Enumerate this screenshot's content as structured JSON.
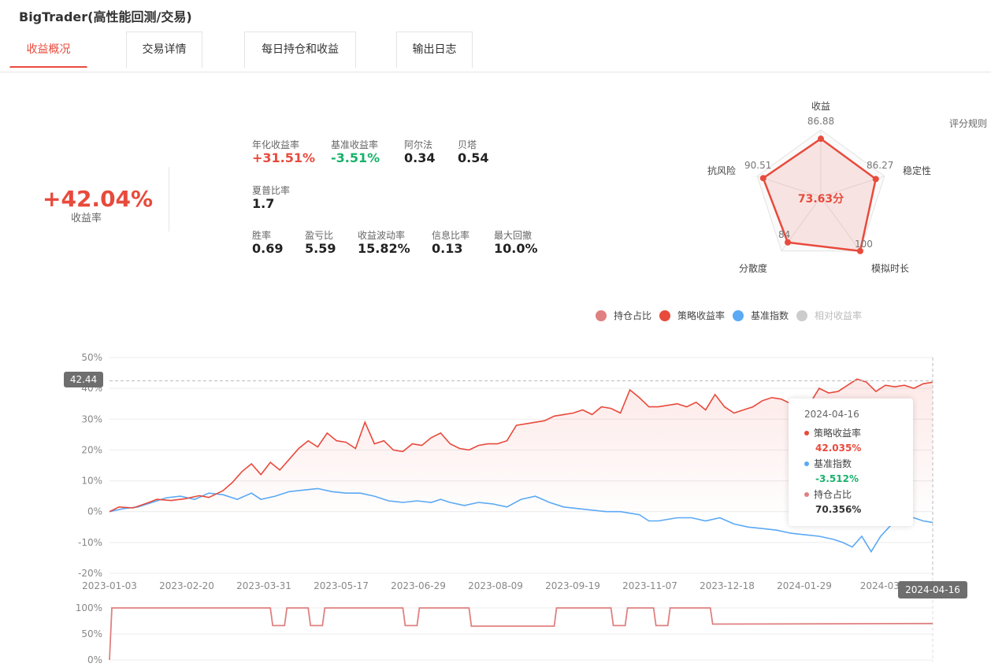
{
  "app": {
    "title": "BigTrader(高性能回测/交易)"
  },
  "tabs": [
    {
      "label": "收益概况",
      "active": true
    },
    {
      "label": "交易详情",
      "active": false
    },
    {
      "label": "每日持仓和收益",
      "active": false
    },
    {
      "label": "输出日志",
      "active": false
    }
  ],
  "summary": {
    "total_return": "+42.04%",
    "total_return_label": "收益率"
  },
  "metrics": [
    {
      "label": "年化收益率",
      "value": "+31.51%",
      "tone": "red"
    },
    {
      "label": "基准收益率",
      "value": "-3.51%",
      "tone": "green"
    },
    {
      "label": "阿尔法",
      "value": "0.34",
      "tone": ""
    },
    {
      "label": "贝塔",
      "value": "0.54",
      "tone": ""
    },
    {
      "label": "夏普比率",
      "value": "1.7",
      "tone": ""
    },
    {
      "label": "胜率",
      "value": "0.69",
      "tone": ""
    },
    {
      "label": "盈亏比",
      "value": "5.59",
      "tone": ""
    },
    {
      "label": "收益波动率",
      "value": "15.82%",
      "tone": ""
    },
    {
      "label": "信息比率",
      "value": "0.13",
      "tone": ""
    },
    {
      "label": "最大回撤",
      "value": "10.0%",
      "tone": ""
    }
  ],
  "radar": {
    "score": "73.63分",
    "rules_label": "评分规则",
    "axes": [
      {
        "name": "收益",
        "value": 86.88,
        "value_label": "86.88"
      },
      {
        "name": "稳定性",
        "value": 86.27,
        "value_label": "86.27"
      },
      {
        "name": "模拟时长",
        "value": 100,
        "value_label": "100"
      },
      {
        "name": "分散度",
        "value": 84,
        "value_label": "84"
      },
      {
        "name": "抗风险",
        "value": 90.51,
        "value_label": "90.51"
      }
    ]
  },
  "colors": {
    "strategy": "#e84a3c",
    "benchmark": "#5aa9f5",
    "position": "#e08080",
    "relative": "#cccccc",
    "green": "#17b26a"
  },
  "legend": [
    {
      "name": "持仓占比",
      "color": "#e08080",
      "active": true
    },
    {
      "name": "策略收益率",
      "color": "#e84a3c",
      "active": true
    },
    {
      "name": "基准指数",
      "color": "#5aa9f5",
      "active": true
    },
    {
      "name": "相对收益率",
      "color": "#cccccc",
      "active": false
    }
  ],
  "tooltip": {
    "date": "2024-04-16",
    "items": [
      {
        "name": "策略收益率",
        "value": "42.035%",
        "color": "#e84a3c",
        "value_color": "#e84a3c"
      },
      {
        "name": "基准指数",
        "value": "-3.512%",
        "color": "#5aa9f5",
        "value_color": "#17b26a"
      },
      {
        "name": "持仓占比",
        "value": "70.356%",
        "color": "#e08080",
        "value_color": "#333333"
      }
    ]
  },
  "chart_data": [
    {
      "type": "line",
      "x_ticks": [
        "2023-01-03",
        "2023-02-20",
        "2023-03-31",
        "2023-05-17",
        "2023-06-29",
        "2023-08-09",
        "2023-09-19",
        "2023-11-07",
        "2023-12-18",
        "2024-01-29",
        "2024-03-"
      ],
      "y_ticks": [
        "50%",
        "40%",
        "30%",
        "20%",
        "10%",
        "0%",
        "-10%",
        "-20%"
      ],
      "ylim": [
        -20,
        50
      ],
      "crosshair": {
        "y_label": "42.44",
        "x_label": "2024-04-16"
      },
      "series": [
        {
          "name": "策略收益率",
          "points": [
            [
              0,
              0
            ],
            [
              2,
              1.5
            ],
            [
              5,
              1.2
            ],
            [
              8,
              2.8
            ],
            [
              10,
              4
            ],
            [
              13,
              3.6
            ],
            [
              16,
              4.2
            ],
            [
              19,
              5.2
            ],
            [
              21,
              4.6
            ],
            [
              24,
              6.8
            ],
            [
              26,
              9.5
            ],
            [
              28,
              13
            ],
            [
              30,
              15.5
            ],
            [
              32,
              12
            ],
            [
              34,
              16
            ],
            [
              36,
              13.5
            ],
            [
              38,
              17
            ],
            [
              40,
              20.5
            ],
            [
              42,
              23
            ],
            [
              44,
              21
            ],
            [
              46,
              25.5
            ],
            [
              48,
              23
            ],
            [
              50,
              22.5
            ],
            [
              52,
              20.5
            ],
            [
              54,
              29
            ],
            [
              56,
              22
            ],
            [
              58,
              23
            ],
            [
              60,
              20
            ],
            [
              62,
              19.5
            ],
            [
              64,
              22
            ],
            [
              66,
              21.5
            ],
            [
              68,
              24
            ],
            [
              70,
              25.5
            ],
            [
              72,
              22
            ],
            [
              74,
              20.5
            ],
            [
              76,
              20
            ],
            [
              78,
              21.5
            ],
            [
              80,
              22
            ],
            [
              82,
              22
            ],
            [
              84,
              23
            ],
            [
              86,
              28
            ],
            [
              88,
              28.5
            ],
            [
              90,
              29
            ],
            [
              92,
              29.5
            ],
            [
              94,
              31
            ],
            [
              96,
              31.5
            ],
            [
              98,
              32
            ],
            [
              100,
              33
            ],
            [
              102,
              31.5
            ],
            [
              104,
              34
            ],
            [
              106,
              33.5
            ],
            [
              108,
              32
            ],
            [
              110,
              39.5
            ],
            [
              112,
              37
            ],
            [
              114,
              34
            ],
            [
              116,
              34
            ],
            [
              118,
              34.5
            ],
            [
              120,
              35
            ],
            [
              122,
              34
            ],
            [
              124,
              35.5
            ],
            [
              126,
              33
            ],
            [
              128,
              38
            ],
            [
              130,
              34
            ],
            [
              132,
              32
            ],
            [
              134,
              33
            ],
            [
              136,
              34
            ],
            [
              138,
              36
            ],
            [
              140,
              37
            ],
            [
              142,
              36.5
            ],
            [
              144,
              35
            ],
            [
              146,
              36
            ],
            [
              148,
              35
            ],
            [
              150,
              40
            ],
            [
              152,
              38.5
            ],
            [
              154,
              39
            ],
            [
              156,
              41
            ],
            [
              158,
              43
            ],
            [
              160,
              42
            ],
            [
              162,
              39
            ],
            [
              164,
              41
            ],
            [
              166,
              40.5
            ],
            [
              168,
              41
            ],
            [
              170,
              40
            ],
            [
              172,
              41.5
            ],
            [
              174,
              42
            ]
          ]
        },
        {
          "name": "基准指数",
          "points": [
            [
              0,
              0
            ],
            [
              3,
              1
            ],
            [
              6,
              1.5
            ],
            [
              9,
              3
            ],
            [
              12,
              4.5
            ],
            [
              15,
              5
            ],
            [
              18,
              4
            ],
            [
              21,
              6
            ],
            [
              24,
              5.5
            ],
            [
              27,
              4
            ],
            [
              30,
              6
            ],
            [
              32,
              4
            ],
            [
              35,
              5
            ],
            [
              38,
              6.5
            ],
            [
              41,
              7
            ],
            [
              44,
              7.5
            ],
            [
              47,
              6.5
            ],
            [
              50,
              6
            ],
            [
              53,
              6
            ],
            [
              56,
              5
            ],
            [
              59,
              3.5
            ],
            [
              62,
              3
            ],
            [
              65,
              3.5
            ],
            [
              68,
              3
            ],
            [
              70,
              4
            ],
            [
              72,
              3
            ],
            [
              75,
              2
            ],
            [
              78,
              3
            ],
            [
              81,
              2.5
            ],
            [
              84,
              1.5
            ],
            [
              87,
              4
            ],
            [
              90,
              5
            ],
            [
              93,
              3
            ],
            [
              96,
              1.5
            ],
            [
              99,
              1
            ],
            [
              102,
              0.5
            ],
            [
              105,
              0
            ],
            [
              108,
              0
            ],
            [
              110,
              -0.5
            ],
            [
              112,
              -1
            ],
            [
              114,
              -3
            ],
            [
              116,
              -3
            ],
            [
              118,
              -2.5
            ],
            [
              120,
              -2
            ],
            [
              123,
              -2
            ],
            [
              126,
              -3
            ],
            [
              129,
              -2
            ],
            [
              132,
              -4
            ],
            [
              135,
              -5
            ],
            [
              138,
              -5.5
            ],
            [
              141,
              -6
            ],
            [
              144,
              -7
            ],
            [
              147,
              -7.5
            ],
            [
              150,
              -8
            ],
            [
              153,
              -9
            ],
            [
              155,
              -10
            ],
            [
              157,
              -11.5
            ],
            [
              159,
              -8
            ],
            [
              161,
              -13
            ],
            [
              163,
              -8
            ],
            [
              166,
              -3
            ],
            [
              168,
              -2
            ],
            [
              170,
              -2
            ],
            [
              172,
              -3
            ],
            [
              174,
              -3.5
            ]
          ]
        }
      ]
    },
    {
      "type": "line",
      "series_name": "持仓占比",
      "y_ticks": [
        "100%",
        "50%",
        "0%"
      ],
      "ylim": [
        0,
        100
      ],
      "points": [
        [
          0,
          0
        ],
        [
          0.5,
          100
        ],
        [
          34,
          100
        ],
        [
          34.5,
          66
        ],
        [
          37,
          66
        ],
        [
          37.5,
          100
        ],
        [
          42,
          100
        ],
        [
          42.5,
          66
        ],
        [
          45,
          66
        ],
        [
          45.5,
          100
        ],
        [
          62,
          100
        ],
        [
          62.5,
          66
        ],
        [
          65,
          66
        ],
        [
          65.5,
          100
        ],
        [
          76,
          100
        ],
        [
          76.5,
          65
        ],
        [
          94,
          65
        ],
        [
          94.5,
          100
        ],
        [
          106,
          100
        ],
        [
          106.5,
          66
        ],
        [
          109,
          66
        ],
        [
          109.5,
          100
        ],
        [
          115,
          100
        ],
        [
          115.5,
          66
        ],
        [
          118,
          66
        ],
        [
          118.5,
          100
        ],
        [
          127,
          100
        ],
        [
          127.5,
          69
        ],
        [
          174,
          70
        ]
      ]
    }
  ]
}
